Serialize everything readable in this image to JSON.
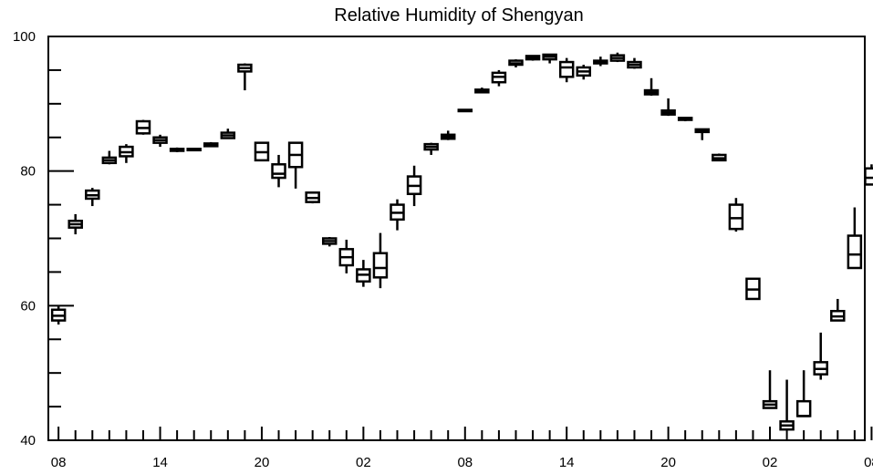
{
  "chart_data": {
    "type": "boxplot",
    "title": "Relative Humidity of Shengyan",
    "xlabel": "",
    "ylabel": "",
    "ylim": [
      40,
      100
    ],
    "xlim": [
      0.4,
      48.6
    ],
    "grid": false,
    "y_ticks": [
      40,
      60,
      80,
      100
    ],
    "x_tick_labels": [
      {
        "x": 1,
        "label": "08"
      },
      {
        "x": 7,
        "label": "14"
      },
      {
        "x": 13,
        "label": "20"
      },
      {
        "x": 19,
        "label": "02"
      },
      {
        "x": 25,
        "label": "08"
      },
      {
        "x": 31,
        "label": "14"
      },
      {
        "x": 37,
        "label": "20"
      },
      {
        "x": 43,
        "label": "02"
      },
      {
        "x": 49,
        "label": "08"
      }
    ],
    "boxes": [
      {
        "x": 1,
        "whisker_low": 57.2,
        "q1": 57.8,
        "median": 58.5,
        "q3": 59.4,
        "whisker_high": 60.0
      },
      {
        "x": 2,
        "whisker_low": 70.6,
        "q1": 71.6,
        "median": 72.1,
        "q3": 72.6,
        "whisker_high": 73.6
      },
      {
        "x": 3,
        "whisker_low": 74.8,
        "q1": 75.9,
        "median": 76.4,
        "q3": 77.1,
        "whisker_high": 77.5
      },
      {
        "x": 4,
        "whisker_low": 81.0,
        "q1": 81.2,
        "median": 81.6,
        "q3": 82.0,
        "whisker_high": 83.0
      },
      {
        "x": 5,
        "whisker_low": 81.2,
        "q1": 82.2,
        "median": 82.8,
        "q3": 83.6,
        "whisker_high": 84.0
      },
      {
        "x": 6,
        "whisker_low": 85.4,
        "q1": 85.6,
        "median": 86.4,
        "q3": 87.4,
        "whisker_high": 87.6
      },
      {
        "x": 7,
        "whisker_low": 83.6,
        "q1": 84.2,
        "median": 84.6,
        "q3": 85.0,
        "whisker_high": 85.4
      },
      {
        "x": 8,
        "whisker_low": 82.8,
        "q1": 83.0,
        "median": 83.2,
        "q3": 83.3,
        "whisker_high": 83.5
      },
      {
        "x": 9,
        "whisker_low": 83.0,
        "q1": 83.1,
        "median": 83.2,
        "q3": 83.3,
        "whisker_high": 83.4
      },
      {
        "x": 10,
        "whisker_low": 83.6,
        "q1": 83.7,
        "median": 83.9,
        "q3": 84.1,
        "whisker_high": 84.3
      },
      {
        "x": 11,
        "whisker_low": 84.8,
        "q1": 84.9,
        "median": 85.3,
        "q3": 85.7,
        "whisker_high": 86.3
      },
      {
        "x": 12,
        "whisker_low": 92.0,
        "q1": 94.8,
        "median": 95.3,
        "q3": 95.8,
        "whisker_high": 96.0
      },
      {
        "x": 13,
        "whisker_low": 81.6,
        "q1": 81.6,
        "median": 82.8,
        "q3": 84.2,
        "whisker_high": 84.2
      },
      {
        "x": 14,
        "whisker_low": 77.6,
        "q1": 79.0,
        "median": 79.6,
        "q3": 81.0,
        "whisker_high": 82.4
      },
      {
        "x": 15,
        "whisker_low": 77.4,
        "q1": 80.6,
        "median": 82.4,
        "q3": 84.2,
        "whisker_high": 84.2
      },
      {
        "x": 16,
        "whisker_low": 75.2,
        "q1": 75.4,
        "median": 76.0,
        "q3": 76.8,
        "whisker_high": 76.8
      },
      {
        "x": 17,
        "whisker_low": 68.8,
        "q1": 69.2,
        "median": 69.6,
        "q3": 70.0,
        "whisker_high": 70.2
      },
      {
        "x": 18,
        "whisker_low": 64.8,
        "q1": 66.0,
        "median": 67.2,
        "q3": 68.4,
        "whisker_high": 69.8
      },
      {
        "x": 19,
        "whisker_low": 62.8,
        "q1": 63.6,
        "median": 64.6,
        "q3": 65.4,
        "whisker_high": 66.8
      },
      {
        "x": 20,
        "whisker_low": 62.6,
        "q1": 64.2,
        "median": 65.6,
        "q3": 67.8,
        "whisker_high": 70.8
      },
      {
        "x": 21,
        "whisker_low": 71.2,
        "q1": 72.8,
        "median": 73.8,
        "q3": 75.0,
        "whisker_high": 75.8
      },
      {
        "x": 22,
        "whisker_low": 74.8,
        "q1": 76.6,
        "median": 77.8,
        "q3": 79.2,
        "whisker_high": 80.8
      },
      {
        "x": 23,
        "whisker_low": 82.4,
        "q1": 83.2,
        "median": 83.6,
        "q3": 84.0,
        "whisker_high": 84.2
      },
      {
        "x": 24,
        "whisker_low": 84.6,
        "q1": 84.8,
        "median": 85.1,
        "q3": 85.4,
        "whisker_high": 86.0
      },
      {
        "x": 25,
        "whisker_low": 88.8,
        "q1": 88.9,
        "median": 89.0,
        "q3": 89.1,
        "whisker_high": 89.2
      },
      {
        "x": 26,
        "whisker_low": 91.6,
        "q1": 91.7,
        "median": 91.9,
        "q3": 92.1,
        "whisker_high": 92.4
      },
      {
        "x": 27,
        "whisker_low": 92.6,
        "q1": 93.2,
        "median": 94.0,
        "q3": 94.6,
        "whisker_high": 95.0
      },
      {
        "x": 28,
        "whisker_low": 95.4,
        "q1": 95.8,
        "median": 96.0,
        "q3": 96.4,
        "whisker_high": 96.6
      },
      {
        "x": 29,
        "whisker_low": 96.4,
        "q1": 96.6,
        "median": 96.9,
        "q3": 97.1,
        "whisker_high": 97.2
      },
      {
        "x": 30,
        "whisker_low": 96.0,
        "q1": 96.6,
        "median": 97.0,
        "q3": 97.3,
        "whisker_high": 97.4
      },
      {
        "x": 31,
        "whisker_low": 93.2,
        "q1": 94.0,
        "median": 95.4,
        "q3": 96.2,
        "whisker_high": 96.8
      },
      {
        "x": 32,
        "whisker_low": 93.6,
        "q1": 94.2,
        "median": 94.8,
        "q3": 95.4,
        "whisker_high": 95.8
      },
      {
        "x": 33,
        "whisker_low": 95.6,
        "q1": 96.0,
        "median": 96.2,
        "q3": 96.4,
        "whisker_high": 97.0
      },
      {
        "x": 34,
        "whisker_low": 96.2,
        "q1": 96.4,
        "median": 96.8,
        "q3": 97.2,
        "whisker_high": 97.6
      },
      {
        "x": 35,
        "whisker_low": 95.2,
        "q1": 95.4,
        "median": 95.8,
        "q3": 96.2,
        "whisker_high": 96.8
      },
      {
        "x": 36,
        "whisker_low": 91.2,
        "q1": 91.4,
        "median": 91.7,
        "q3": 92.0,
        "whisker_high": 93.8
      },
      {
        "x": 37,
        "whisker_low": 88.2,
        "q1": 88.4,
        "median": 88.7,
        "q3": 89.0,
        "whisker_high": 90.8
      },
      {
        "x": 38,
        "whisker_low": 87.4,
        "q1": 87.6,
        "median": 87.8,
        "q3": 87.9,
        "whisker_high": 88.0
      },
      {
        "x": 39,
        "whisker_low": 84.6,
        "q1": 85.8,
        "median": 86.0,
        "q3": 86.2,
        "whisker_high": 86.2
      },
      {
        "x": 40,
        "whisker_low": 81.6,
        "q1": 81.6,
        "median": 81.9,
        "q3": 82.4,
        "whisker_high": 82.6
      },
      {
        "x": 41,
        "whisker_low": 71.0,
        "q1": 71.4,
        "median": 73.0,
        "q3": 75.0,
        "whisker_high": 76.0
      },
      {
        "x": 42,
        "whisker_low": 61.0,
        "q1": 61.0,
        "median": 62.4,
        "q3": 64.0,
        "whisker_high": 64.0
      },
      {
        "x": 43,
        "whisker_low": 44.8,
        "q1": 44.8,
        "median": 45.3,
        "q3": 45.8,
        "whisker_high": 50.4
      },
      {
        "x": 44,
        "whisker_low": 41.6,
        "q1": 41.6,
        "median": 42.2,
        "q3": 42.8,
        "whisker_high": 49.0
      },
      {
        "x": 45,
        "whisker_low": 43.6,
        "q1": 43.6,
        "median": 43.6,
        "q3": 45.8,
        "whisker_high": 50.4
      },
      {
        "x": 46,
        "whisker_low": 49.0,
        "q1": 49.8,
        "median": 50.6,
        "q3": 51.6,
        "whisker_high": 56.0
      },
      {
        "x": 47,
        "whisker_low": 57.8,
        "q1": 57.8,
        "median": 58.4,
        "q3": 59.2,
        "whisker_high": 61.0
      },
      {
        "x": 48,
        "whisker_low": 65.6,
        "q1": 65.6,
        "median": 67.6,
        "q3": 70.4,
        "whisker_high": 74.6
      },
      {
        "x": 49,
        "whisker_low": 78.0,
        "q1": 78.0,
        "median": 79.0,
        "q3": 80.4,
        "whisker_high": 81.0
      }
    ]
  }
}
